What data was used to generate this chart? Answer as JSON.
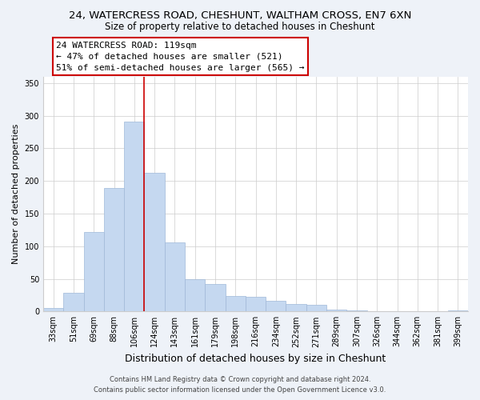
{
  "title": "24, WATERCRESS ROAD, CHESHUNT, WALTHAM CROSS, EN7 6XN",
  "subtitle": "Size of property relative to detached houses in Cheshunt",
  "xlabel": "Distribution of detached houses by size in Cheshunt",
  "ylabel": "Number of detached properties",
  "bar_labels": [
    "33sqm",
    "51sqm",
    "69sqm",
    "88sqm",
    "106sqm",
    "124sqm",
    "143sqm",
    "161sqm",
    "179sqm",
    "198sqm",
    "216sqm",
    "234sqm",
    "252sqm",
    "271sqm",
    "289sqm",
    "307sqm",
    "326sqm",
    "344sqm",
    "362sqm",
    "381sqm",
    "399sqm"
  ],
  "bar_heights": [
    5,
    29,
    122,
    189,
    291,
    213,
    106,
    50,
    42,
    24,
    22,
    16,
    12,
    10,
    3,
    1,
    0,
    0,
    0,
    0,
    2
  ],
  "bar_color": "#c5d8f0",
  "bar_edge_color": "#a0b8d8",
  "vline_color": "#cc0000",
  "vline_x": 4.5,
  "ylim": [
    0,
    360
  ],
  "yticks": [
    0,
    50,
    100,
    150,
    200,
    250,
    300,
    350
  ],
  "annotation_title": "24 WATERCRESS ROAD: 119sqm",
  "annotation_line1": "← 47% of detached houses are smaller (521)",
  "annotation_line2": "51% of semi-detached houses are larger (565) →",
  "footer_line1": "Contains HM Land Registry data © Crown copyright and database right 2024.",
  "footer_line2": "Contains public sector information licensed under the Open Government Licence v3.0.",
  "background_color": "#eef2f8",
  "plot_bg_color": "#ffffff",
  "title_fontsize": 9.5,
  "subtitle_fontsize": 8.5,
  "ylabel_fontsize": 8,
  "xlabel_fontsize": 9,
  "tick_fontsize": 7,
  "footer_fontsize": 6,
  "ann_fontsize": 8
}
